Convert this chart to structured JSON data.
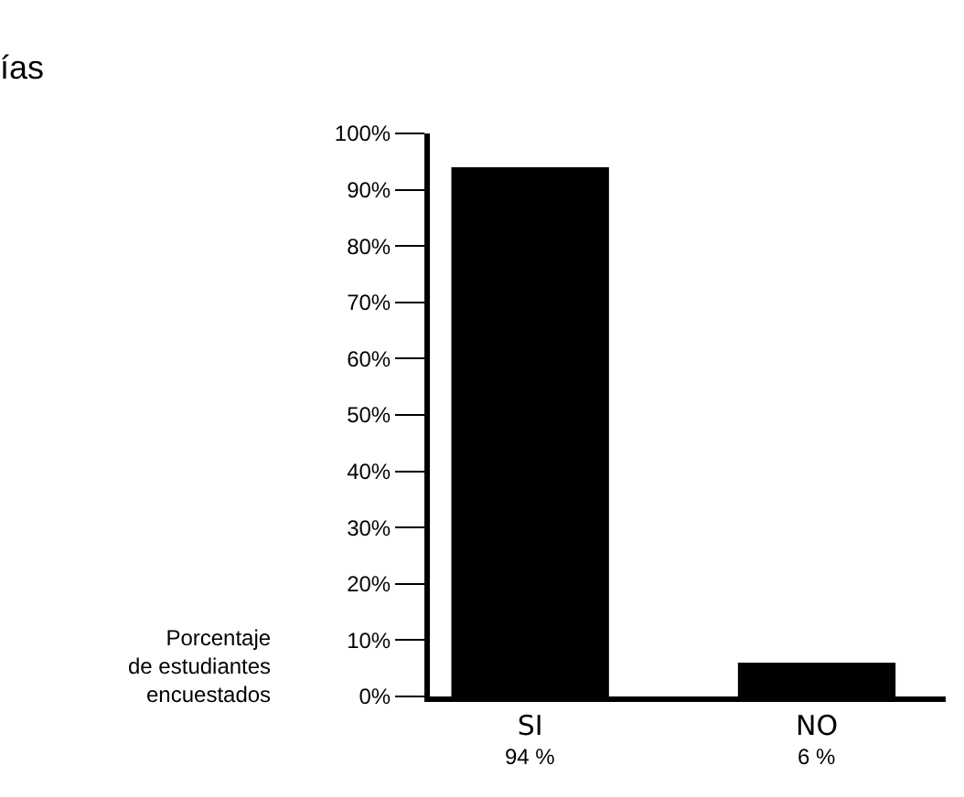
{
  "chart_data": {
    "type": "bar",
    "title": "ías",
    "ylabel": "Porcentaje\nde estudiantes\nencuestados",
    "categories": [
      "SI",
      "NO"
    ],
    "values": [
      94,
      6
    ],
    "color": "#000000",
    "value_labels": [
      "94 %",
      "6 %"
    ],
    "ylim": [
      0,
      100
    ],
    "yticks": [
      {
        "value": 0,
        "label": "0%"
      },
      {
        "value": 10,
        "label": "10%"
      },
      {
        "value": 20,
        "label": "20%"
      },
      {
        "value": 30,
        "label": "30%"
      },
      {
        "value": 40,
        "label": "40%"
      },
      {
        "value": 50,
        "label": "50%"
      },
      {
        "value": 60,
        "label": "60%"
      },
      {
        "value": 70,
        "label": "70%"
      },
      {
        "value": 80,
        "label": "80%"
      },
      {
        "value": 90,
        "label": "90%"
      },
      {
        "value": 100,
        "label": "100%"
      }
    ]
  }
}
